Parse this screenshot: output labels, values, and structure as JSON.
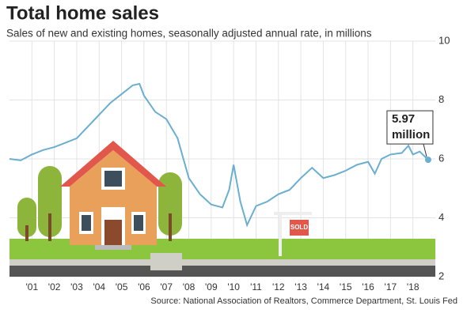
{
  "chart_data": {
    "type": "line",
    "title": "Total home sales",
    "subtitle": "Sales of new and existing homes, seasonally adjusted annual rate, in millions",
    "source": "Source: National Association of Realtors, Commerce Department, St. Louis Fed",
    "annotation": [
      "5.97",
      "million"
    ],
    "sign_text": "SOLD",
    "x": [
      2000.0,
      2000.5,
      2001.0,
      2001.5,
      2002.0,
      2002.5,
      2003.0,
      2003.5,
      2004.0,
      2004.5,
      2005.0,
      2005.5,
      2005.8,
      2006.0,
      2006.5,
      2007.0,
      2007.5,
      2008.0,
      2008.5,
      2009.0,
      2009.5,
      2009.8,
      2010.0,
      2010.3,
      2010.6,
      2011.0,
      2011.5,
      2012.0,
      2012.5,
      2013.0,
      2013.5,
      2014.0,
      2014.5,
      2015.0,
      2015.5,
      2016.0,
      2016.3,
      2016.6,
      2017.0,
      2017.5,
      2017.8,
      2018.0,
      2018.3,
      2018.68
    ],
    "values": [
      6.0,
      5.95,
      6.15,
      6.3,
      6.4,
      6.55,
      6.7,
      7.1,
      7.5,
      7.9,
      8.2,
      8.5,
      8.55,
      8.15,
      7.6,
      7.35,
      6.7,
      5.35,
      4.8,
      4.45,
      4.35,
      4.95,
      5.8,
      4.55,
      3.75,
      4.4,
      4.55,
      4.8,
      4.95,
      5.35,
      5.7,
      5.35,
      5.45,
      5.6,
      5.8,
      5.9,
      5.5,
      6.0,
      6.15,
      6.2,
      6.45,
      6.15,
      6.25,
      5.97
    ],
    "color": "#6aaed0",
    "xlim": [
      2000,
      2019
    ],
    "xticks": [
      {
        "value": 2001,
        "label": "'01"
      },
      {
        "value": 2002,
        "label": "'02"
      },
      {
        "value": 2003,
        "label": "'03"
      },
      {
        "value": 2004,
        "label": "'04"
      },
      {
        "value": 2005,
        "label": "'05"
      },
      {
        "value": 2006,
        "label": "'06"
      },
      {
        "value": 2007,
        "label": "'07"
      },
      {
        "value": 2008,
        "label": "'08"
      },
      {
        "value": 2009,
        "label": "'09"
      },
      {
        "value": 2010,
        "label": "'10"
      },
      {
        "value": 2011,
        "label": "'11"
      },
      {
        "value": 2012,
        "label": "'12"
      },
      {
        "value": 2013,
        "label": "'13"
      },
      {
        "value": 2014,
        "label": "'14"
      },
      {
        "value": 2015,
        "label": "'15"
      },
      {
        "value": 2016,
        "label": "'16"
      },
      {
        "value": 2017,
        "label": "'17"
      },
      {
        "value": 2018,
        "label": "'18"
      }
    ],
    "ylim": [
      2,
      10
    ],
    "yticks": [
      2,
      4,
      6,
      8,
      10
    ],
    "grid": true
  }
}
